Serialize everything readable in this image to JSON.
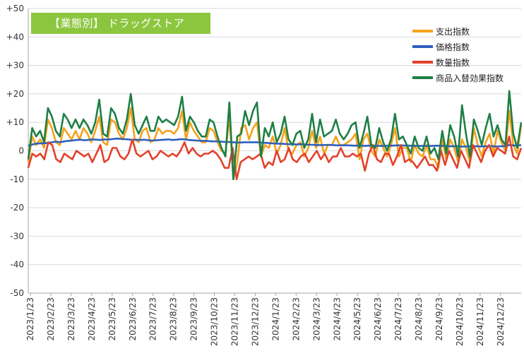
{
  "chart_data": {
    "type": "line",
    "title": "【業態別】 ドラッグストア",
    "ylim": [
      -50,
      50
    ],
    "y_ticks": [
      "+50",
      "+40",
      "+30",
      "+20",
      "+10",
      "0",
      "-10",
      "-20",
      "-30",
      "-40",
      "-50"
    ],
    "y_tick_values": [
      50,
      40,
      30,
      20,
      10,
      0,
      -10,
      -20,
      -30,
      -40,
      -50
    ],
    "x_tick_labels": [
      "2023/1/23",
      "2023/2/23",
      "2023/3/23",
      "2023/4/23",
      "2023/5/23",
      "2023/6/23",
      "2023/7/23",
      "2023/8/23",
      "2023/9/23",
      "2023/10/23",
      "2023/11/23",
      "2023/12/23",
      "2024/1/23",
      "2024/2/23",
      "2024/3/23",
      "2024/4/23",
      "2024/5/23",
      "2024/6/23",
      "2024/7/23",
      "2024/8/23",
      "2024/9/23",
      "2024/10/23",
      "2024/11/23",
      "2024/12/23"
    ],
    "grid": "horizontal",
    "legend_position": "top-right",
    "colors": {
      "支出指数": "#f5a21b",
      "価格指数": "#2e5fbd",
      "数量指数": "#e2412a",
      "商品入替効果指数": "#1e7f46"
    },
    "series": [
      {
        "name": "支出指数",
        "values": [
          -4,
          5,
          2,
          4,
          1,
          11,
          8,
          3,
          2,
          8,
          6,
          4,
          7,
          4,
          8,
          6,
          3,
          7,
          12,
          3,
          2,
          11,
          10,
          6,
          4,
          8,
          15,
          4,
          3,
          7,
          8,
          3,
          4,
          8,
          6,
          7,
          7,
          6,
          8,
          14,
          4,
          10,
          7,
          5,
          3,
          3,
          8,
          7,
          3,
          0,
          -1,
          12,
          -10,
          -4,
          8,
          9,
          4,
          8,
          10,
          -2,
          2,
          1,
          5,
          -1,
          2,
          8,
          0,
          -1,
          2,
          3,
          -2,
          1,
          7,
          1,
          5,
          -1,
          2,
          2,
          5,
          2,
          2,
          3,
          4,
          6,
          -3,
          4,
          6,
          0,
          -2,
          4,
          1,
          -2,
          2,
          8,
          -2,
          1,
          1,
          -4,
          2,
          -1,
          -2,
          2,
          -3,
          -3,
          -6,
          4,
          -3,
          4,
          1,
          -4,
          4,
          1,
          -4,
          8,
          2,
          -2,
          3,
          6,
          -1,
          7,
          3,
          0,
          14,
          2,
          -1,
          9
        ]
      },
      {
        "name": "価格指数",
        "values": [
          1.8,
          2.2,
          2.5,
          2.6,
          2.6,
          2.8,
          3.0,
          3.2,
          3.0,
          3.3,
          3.5,
          3.6,
          3.8,
          3.9,
          3.7,
          3.8,
          4.0,
          3.9,
          3.8,
          4.0,
          4.0,
          4.1,
          4.3,
          4.2,
          4.1,
          4.0,
          3.8,
          3.9,
          3.8,
          3.9,
          3.7,
          3.6,
          3.7,
          3.8,
          3.9,
          4.0,
          3.8,
          3.9,
          4.1,
          4.0,
          3.8,
          3.7,
          3.6,
          3.5,
          3.5,
          3.4,
          3.3,
          3.3,
          3.2,
          3.1,
          3.1,
          3.0,
          2.9,
          2.9,
          3.0,
          3.0,
          3.0,
          3.0,
          2.9,
          2.8,
          2.7,
          2.6,
          2.5,
          2.5,
          2.4,
          2.3,
          2.3,
          2.2,
          2.3,
          2.2,
          2.1,
          2.1,
          2.0,
          2.0,
          2.0,
          2.1,
          2.0,
          1.9,
          1.9,
          1.9,
          1.9,
          1.8,
          1.8,
          1.8,
          1.7,
          1.8,
          1.8,
          1.7,
          1.7,
          1.7,
          1.8,
          1.8,
          1.9,
          1.9,
          1.8,
          1.8,
          1.7,
          1.7,
          1.7,
          1.7,
          1.7,
          1.7,
          1.8,
          1.7,
          1.7,
          1.6,
          1.6,
          1.6,
          1.5,
          1.5,
          1.6,
          1.6,
          1.6,
          1.5,
          1.6,
          1.6,
          1.6,
          1.5,
          1.6,
          1.6,
          2.0,
          1.9,
          1.8,
          2.0
        ]
      },
      {
        "name": "数量指数",
        "values": [
          -6,
          -1,
          -2,
          -1,
          -3,
          3,
          2,
          -3,
          -4,
          -1,
          -2,
          -3,
          0,
          -1,
          -2,
          -1,
          -4,
          -1,
          2,
          -4,
          -3,
          1,
          1,
          -2,
          -3,
          -1,
          4,
          -1,
          -2,
          -1,
          0,
          -3,
          -2,
          0,
          -1,
          -2,
          -1,
          -2,
          0,
          3,
          -1,
          1,
          -1,
          -2,
          -1,
          -1,
          0,
          -1,
          -3,
          -6,
          -6,
          1,
          -10,
          -4,
          -3,
          -2,
          -3,
          -2,
          -1,
          -6,
          -4,
          -5,
          0,
          -4,
          -3,
          1,
          -3,
          -4,
          -2,
          -1,
          -4,
          -2,
          0,
          -3,
          -1,
          -4,
          -2,
          -2,
          1,
          -2,
          -2,
          -1,
          -2,
          -1,
          -7,
          -1,
          2,
          -3,
          -4,
          -1,
          -1,
          -5,
          -2,
          2,
          -4,
          -3,
          -4,
          -6,
          -4,
          -2,
          -5,
          -5,
          -7,
          0,
          -5,
          0,
          -3,
          -6,
          0,
          -3,
          -6,
          2,
          -1,
          -4,
          0,
          2,
          -2,
          1,
          0,
          -1,
          5,
          -2,
          -3,
          1
        ]
      },
      {
        "name": "商品入替効果指数",
        "values": [
          -3,
          8,
          5,
          7,
          3,
          15,
          12,
          7,
          5,
          13,
          11,
          8,
          11,
          8,
          11,
          9,
          6,
          10,
          18,
          6,
          5,
          15,
          13,
          8,
          6,
          11,
          20,
          9,
          6,
          9,
          12,
          7,
          7,
          12,
          10,
          11,
          10,
          9,
          12,
          19,
          7,
          12,
          10,
          7,
          5,
          5,
          11,
          10,
          5,
          1,
          -2,
          17,
          -10,
          5,
          6,
          14,
          9,
          14,
          17,
          -2,
          8,
          5,
          10,
          3,
          6,
          12,
          4,
          2,
          6,
          7,
          1,
          4,
          13,
          3,
          11,
          5,
          6,
          7,
          11,
          6,
          4,
          6,
          9,
          10,
          1,
          6,
          12,
          2,
          1,
          8,
          3,
          0,
          4,
          13,
          4,
          5,
          2,
          -1,
          5,
          1,
          0,
          5,
          -1,
          1,
          -3,
          7,
          -1,
          9,
          5,
          -2,
          16,
          6,
          -2,
          11,
          7,
          2,
          8,
          13,
          5,
          9,
          4,
          2,
          21,
          6,
          1,
          10
        ]
      }
    ]
  }
}
